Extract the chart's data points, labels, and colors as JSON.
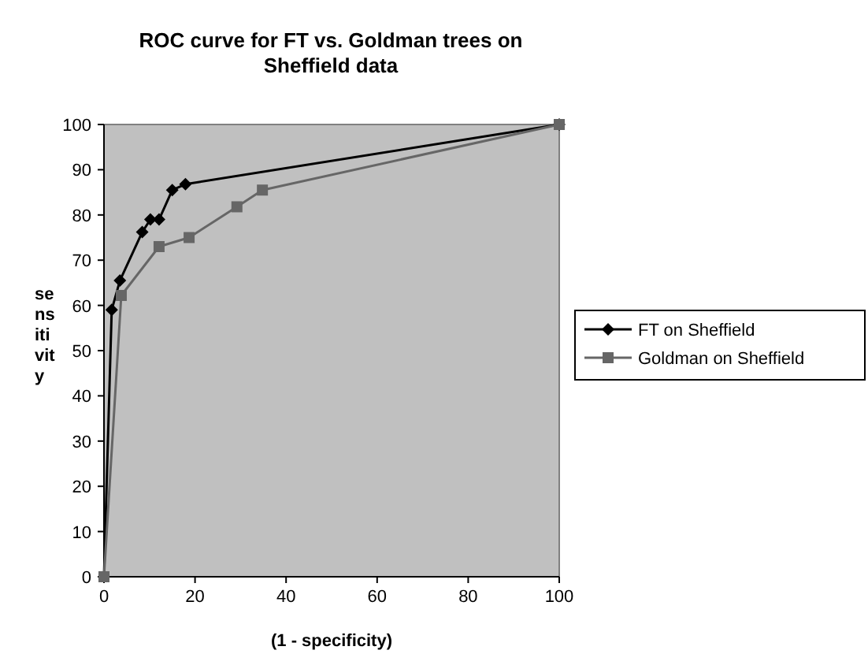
{
  "chart_data": {
    "type": "line",
    "title": "ROC curve for FT vs. Goldman trees on Sheffield data",
    "xlabel": "(1 - specificity)",
    "ylabel": "se\nns\niti\nvit\ny",
    "series": [
      {
        "name": "FT on Sheffield",
        "color": "#000000",
        "marker": "diamond",
        "x": [
          0,
          1.7,
          3.5,
          8.4,
          10.2,
          12.1,
          15,
          17.9,
          100
        ],
        "values": [
          0,
          59,
          65.5,
          76.2,
          79,
          79,
          85.5,
          86.8,
          100
        ]
      },
      {
        "name": "Goldman on Sheffield",
        "color": "#666666",
        "marker": "square",
        "x": [
          0,
          3.8,
          12.1,
          18.7,
          29.2,
          34.8,
          100
        ],
        "values": [
          0,
          62.2,
          73,
          75,
          81.8,
          85.5,
          100
        ]
      }
    ],
    "xlim": [
      0,
      100
    ],
    "xticks": [
      0,
      20,
      40,
      60,
      80,
      100
    ],
    "ylim": [
      0,
      100
    ],
    "yticks": [
      0,
      10,
      20,
      30,
      40,
      50,
      60,
      70,
      80,
      90,
      100
    ],
    "grid": false,
    "legend": "right"
  }
}
